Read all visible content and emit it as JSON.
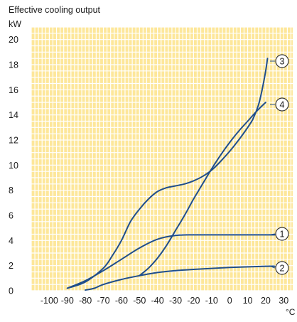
{
  "chart_data": {
    "type": "line",
    "title": "Effective cooling output",
    "ylabel": "kW",
    "xlabel": "°C",
    "xlim": [
      -110,
      35
    ],
    "ylim": [
      0,
      21
    ],
    "x_ticks": [
      -100,
      -90,
      -80,
      -70,
      -60,
      -50,
      -40,
      -30,
      -20,
      -10,
      0,
      10,
      20,
      30
    ],
    "y_ticks": [
      0,
      2,
      4,
      6,
      8,
      10,
      12,
      14,
      16,
      18,
      20
    ],
    "grid": true,
    "colors": {
      "background": "#fde79a",
      "grid": "#ffffff",
      "line": "#1f4e8c",
      "text": "#1a1a1a"
    },
    "series": [
      {
        "name": "1",
        "points": [
          [
            -90,
            0.2
          ],
          [
            -80,
            0.8
          ],
          [
            -70,
            1.6
          ],
          [
            -60,
            2.5
          ],
          [
            -50,
            3.4
          ],
          [
            -40,
            4.1
          ],
          [
            -30,
            4.4
          ],
          [
            -20,
            4.45
          ],
          [
            0,
            4.45
          ],
          [
            20,
            4.45
          ],
          [
            25,
            4.45
          ]
        ]
      },
      {
        "name": "2",
        "points": [
          [
            -80,
            0.05
          ],
          [
            -75,
            0.2
          ],
          [
            -70,
            0.5
          ],
          [
            -60,
            0.9
          ],
          [
            -50,
            1.2
          ],
          [
            -40,
            1.45
          ],
          [
            -30,
            1.6
          ],
          [
            -20,
            1.7
          ],
          [
            0,
            1.85
          ],
          [
            20,
            1.95
          ],
          [
            25,
            1.95
          ]
        ]
      },
      {
        "name": "3",
        "points": [
          [
            -90,
            0.2
          ],
          [
            -80,
            0.7
          ],
          [
            -70,
            1.8
          ],
          [
            -65,
            2.8
          ],
          [
            -60,
            4.0
          ],
          [
            -55,
            5.5
          ],
          [
            -50,
            6.5
          ],
          [
            -45,
            7.3
          ],
          [
            -40,
            7.9
          ],
          [
            -35,
            8.2
          ],
          [
            -30,
            8.35
          ],
          [
            -25,
            8.5
          ],
          [
            -20,
            8.75
          ],
          [
            -15,
            9.1
          ],
          [
            -10,
            9.6
          ],
          [
            -5,
            10.3
          ],
          [
            0,
            11.1
          ],
          [
            5,
            12.0
          ],
          [
            10,
            13.0
          ],
          [
            13,
            13.7
          ],
          [
            16,
            14.8
          ],
          [
            18,
            16.0
          ],
          [
            20,
            17.5
          ],
          [
            21,
            18.5
          ]
        ]
      },
      {
        "name": "4",
        "points": [
          [
            -50,
            1.2
          ],
          [
            -45,
            1.8
          ],
          [
            -40,
            2.6
          ],
          [
            -35,
            3.6
          ],
          [
            -30,
            4.8
          ],
          [
            -25,
            6.0
          ],
          [
            -20,
            7.3
          ],
          [
            -15,
            8.5
          ],
          [
            -10,
            9.7
          ],
          [
            -5,
            10.8
          ],
          [
            0,
            11.8
          ],
          [
            5,
            12.7
          ],
          [
            10,
            13.5
          ],
          [
            15,
            14.3
          ],
          [
            20,
            15.0
          ]
        ]
      }
    ]
  }
}
